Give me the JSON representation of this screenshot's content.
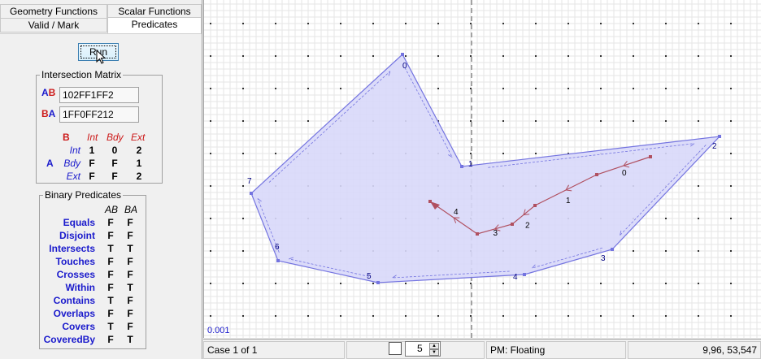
{
  "tabs": {
    "geometry": "Geometry Functions",
    "scalar": "Scalar Functions",
    "valid": "Valid / Mark",
    "predicates": "Predicates"
  },
  "run_label": "Run",
  "intersection_matrix": {
    "title": "Intersection Matrix",
    "ab_label_a": "A",
    "ab_label_b": "B",
    "ab_value": "102FF1FF2",
    "ba_label_b": "B",
    "ba_label_a": "A",
    "ba_value": "1FF0FF212",
    "col_header_b": "B",
    "cols": [
      "Int",
      "Bdy",
      "Ext"
    ],
    "row_header_a": "A",
    "rows": [
      {
        "name": "Int",
        "values": [
          "1",
          "0",
          "2"
        ]
      },
      {
        "name": "Bdy",
        "values": [
          "F",
          "F",
          "1"
        ]
      },
      {
        "name": "Ext",
        "values": [
          "F",
          "F",
          "2"
        ]
      }
    ]
  },
  "binary_predicates": {
    "title": "Binary Predicates",
    "col_ab": "AB",
    "col_ba": "BA",
    "rows": [
      {
        "name": "Equals",
        "ab": "F",
        "ba": "F"
      },
      {
        "name": "Disjoint",
        "ab": "F",
        "ba": "F"
      },
      {
        "name": "Intersects",
        "ab": "T",
        "ba": "T"
      },
      {
        "name": "Touches",
        "ab": "F",
        "ba": "F"
      },
      {
        "name": "Crosses",
        "ab": "F",
        "ba": "F"
      },
      {
        "name": "Within",
        "ab": "F",
        "ba": "T"
      },
      {
        "name": "Contains",
        "ab": "T",
        "ba": "F"
      },
      {
        "name": "Overlaps",
        "ab": "F",
        "ba": "F"
      },
      {
        "name": "Covers",
        "ab": "T",
        "ba": "F"
      },
      {
        "name": "CoveredBy",
        "ab": "F",
        "ba": "T"
      }
    ]
  },
  "canvas": {
    "scale_label": "0.001",
    "polygon_vertex_labels": [
      "0",
      "1",
      "2",
      "3",
      "4",
      "5",
      "6",
      "7"
    ],
    "line_vertex_labels": [
      "0",
      "1",
      "2",
      "3",
      "4"
    ],
    "colors": {
      "polygon_fill": "#d8d8fa",
      "polygon_stroke": "#7474e0",
      "line_stroke": "#b05060",
      "grid_minor": "#e6e6e6",
      "grid_major": "#999999"
    }
  },
  "status": {
    "case": "Case 1 of 1",
    "spinner_value": "5",
    "precision_model": "PM: Floating",
    "coordinates": "9,96, 53,547"
  }
}
